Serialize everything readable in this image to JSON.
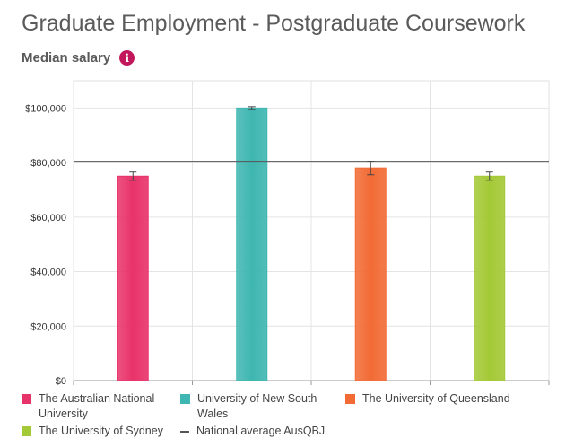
{
  "header": {
    "title": "Graduate Employment - Postgraduate Coursework",
    "subtitle": "Median salary",
    "info_icon": "info-icon"
  },
  "colors": {
    "anu": "#e8336a",
    "unsw": "#3fb6b1",
    "uq": "#f26b35",
    "usyd": "#a4c936",
    "national": "#555555"
  },
  "chart_data": {
    "type": "bar",
    "categories": [
      "The Australian National University",
      "University of New South Wales",
      "The University of Queensland",
      "The University of Sydney"
    ],
    "values": [
      75000,
      100000,
      78000,
      75000
    ],
    "error_bars": [
      [
        73500,
        76500
      ],
      [
        99500,
        100500
      ],
      [
        75500,
        80500
      ],
      [
        73500,
        76500
      ]
    ],
    "reference_line": {
      "name": "National average AusQBJ",
      "value": 80300
    },
    "ylim": [
      0,
      110000
    ],
    "yticks": [
      "$0",
      "$20,000",
      "$40,000",
      "$60,000",
      "$80,000",
      "$100,000"
    ],
    "ytick_values": [
      0,
      20000,
      40000,
      60000,
      80000,
      100000
    ],
    "grid": true,
    "legend_position": "bottom"
  },
  "legend": [
    {
      "label": "The Australian National University",
      "color_key": "anu",
      "kind": "box"
    },
    {
      "label": "University of New South Wales",
      "color_key": "unsw",
      "kind": "box"
    },
    {
      "label": "The University of Queensland",
      "color_key": "uq",
      "kind": "box"
    },
    {
      "label": "The University of Sydney",
      "color_key": "usyd",
      "kind": "box"
    },
    {
      "label": "National average AusQBJ",
      "color_key": "national",
      "kind": "line"
    }
  ]
}
